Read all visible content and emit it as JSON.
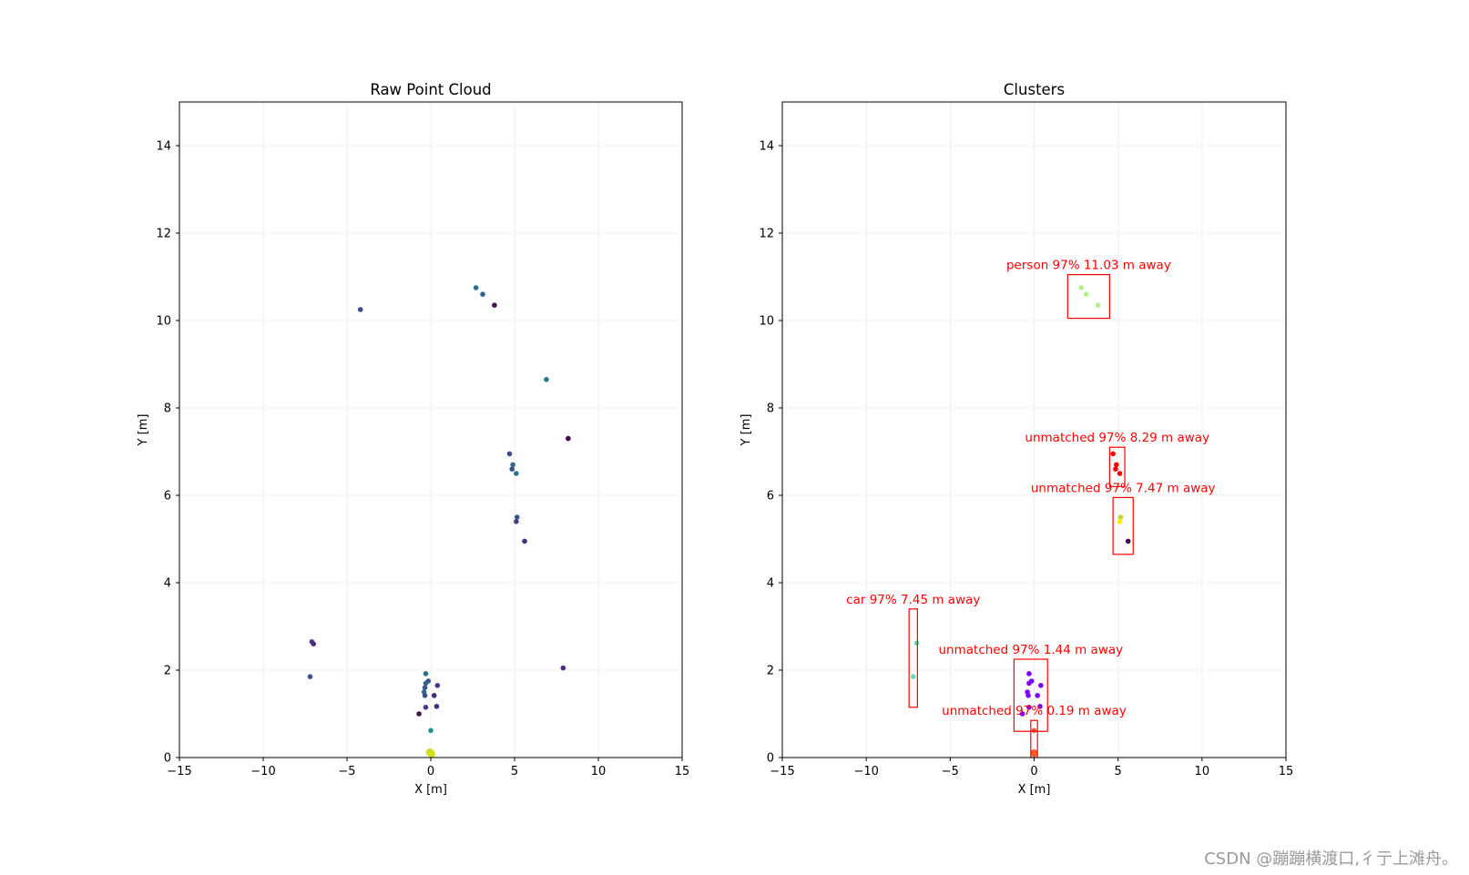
{
  "chart_data": [
    {
      "type": "scatter",
      "title": "Raw Point Cloud",
      "xlabel": "X [m]",
      "ylabel": "Y [m]",
      "xlim": [
        -15,
        15
      ],
      "ylim": [
        0,
        15
      ],
      "xticks": [
        -15,
        -10,
        -5,
        0,
        5,
        10,
        15
      ],
      "yticks": [
        0,
        2,
        4,
        6,
        8,
        10,
        12,
        14
      ],
      "grid": true,
      "series": [
        {
          "name": "points",
          "points": [
            {
              "x": -4.2,
              "y": 10.25,
              "color": "#3b4a8a"
            },
            {
              "x": 2.7,
              "y": 10.75,
              "color": "#2c6e8e"
            },
            {
              "x": 3.1,
              "y": 10.6,
              "color": "#355e8d"
            },
            {
              "x": 3.8,
              "y": 10.35,
              "color": "#46104f"
            },
            {
              "x": 6.9,
              "y": 8.65,
              "color": "#2a788e"
            },
            {
              "x": 8.2,
              "y": 7.3,
              "color": "#440154"
            },
            {
              "x": 4.7,
              "y": 6.95,
              "color": "#3e4a89"
            },
            {
              "x": 4.9,
              "y": 6.7,
              "color": "#31688e"
            },
            {
              "x": 4.85,
              "y": 6.6,
              "color": "#3b528b"
            },
            {
              "x": 5.1,
              "y": 6.5,
              "color": "#2c728e"
            },
            {
              "x": 5.15,
              "y": 5.5,
              "color": "#3b528b"
            },
            {
              "x": 5.1,
              "y": 5.4,
              "color": "#433e85"
            },
            {
              "x": 5.6,
              "y": 4.95,
              "color": "#472d7b"
            },
            {
              "x": -7.1,
              "y": 2.65,
              "color": "#433e85"
            },
            {
              "x": -7.0,
              "y": 2.6,
              "color": "#472d7b"
            },
            {
              "x": -7.2,
              "y": 1.85,
              "color": "#3b528b"
            },
            {
              "x": 7.9,
              "y": 2.05,
              "color": "#472d7b"
            },
            {
              "x": -0.3,
              "y": 1.92,
              "color": "#2c728e"
            },
            {
              "x": -0.15,
              "y": 1.75,
              "color": "#3b528b"
            },
            {
              "x": -0.3,
              "y": 1.7,
              "color": "#31688e"
            },
            {
              "x": -0.35,
              "y": 1.6,
              "color": "#3b528b"
            },
            {
              "x": 0.4,
              "y": 1.65,
              "color": "#433e85"
            },
            {
              "x": -0.4,
              "y": 1.5,
              "color": "#31688e"
            },
            {
              "x": -0.35,
              "y": 1.42,
              "color": "#3b528b"
            },
            {
              "x": 0.2,
              "y": 1.42,
              "color": "#472d7b"
            },
            {
              "x": -0.3,
              "y": 1.15,
              "color": "#433e85"
            },
            {
              "x": 0.35,
              "y": 1.17,
              "color": "#472d7b"
            },
            {
              "x": -0.7,
              "y": 1.0,
              "color": "#46104f"
            },
            {
              "x": 0.0,
              "y": 0.62,
              "color": "#21918c"
            },
            {
              "x": -0.05,
              "y": 0.12,
              "color": "#b5de2b"
            },
            {
              "x": 0.0,
              "y": 0.1,
              "color": "#cde11d"
            },
            {
              "x": 0.05,
              "y": 0.08,
              "color": "#d8e219"
            }
          ]
        }
      ]
    },
    {
      "type": "scatter",
      "title": "Clusters",
      "xlabel": "X [m]",
      "ylabel": "Y [m]",
      "xlim": [
        -15,
        15
      ],
      "ylim": [
        0,
        15
      ],
      "xticks": [
        -15,
        -10,
        -5,
        0,
        5,
        10,
        15
      ],
      "yticks": [
        0,
        2,
        4,
        6,
        8,
        10,
        12,
        14
      ],
      "grid": true,
      "series": [
        {
          "name": "cluster points",
          "points": [
            {
              "x": 2.8,
              "y": 10.75,
              "color": "#b4f08a"
            },
            {
              "x": 3.1,
              "y": 10.6,
              "color": "#b4f08a"
            },
            {
              "x": 3.8,
              "y": 10.35,
              "color": "#b4f08a"
            },
            {
              "x": 4.7,
              "y": 6.95,
              "color": "#ff0000"
            },
            {
              "x": 4.9,
              "y": 6.7,
              "color": "#ff0000"
            },
            {
              "x": 4.85,
              "y": 6.6,
              "color": "#ff0000"
            },
            {
              "x": 5.1,
              "y": 6.5,
              "color": "#ff0000"
            },
            {
              "x": 5.15,
              "y": 5.5,
              "color": "#b5de2b"
            },
            {
              "x": 5.1,
              "y": 5.4,
              "color": "#ffee00"
            },
            {
              "x": 5.6,
              "y": 4.95,
              "color": "#440154"
            },
            {
              "x": -7.0,
              "y": 2.62,
              "color": "#66dbb5"
            },
            {
              "x": -7.2,
              "y": 1.85,
              "color": "#66dbb5"
            },
            {
              "x": -0.3,
              "y": 1.92,
              "color": "#7f00ff"
            },
            {
              "x": -0.15,
              "y": 1.75,
              "color": "#7f00ff"
            },
            {
              "x": -0.3,
              "y": 1.7,
              "color": "#7f00ff"
            },
            {
              "x": 0.4,
              "y": 1.65,
              "color": "#7f00ff"
            },
            {
              "x": -0.4,
              "y": 1.5,
              "color": "#7f00ff"
            },
            {
              "x": -0.35,
              "y": 1.42,
              "color": "#7f00ff"
            },
            {
              "x": 0.2,
              "y": 1.42,
              "color": "#7f00ff"
            },
            {
              "x": -0.3,
              "y": 1.15,
              "color": "#7f00ff"
            },
            {
              "x": 0.35,
              "y": 1.17,
              "color": "#7f00ff"
            },
            {
              "x": -0.7,
              "y": 1.0,
              "color": "#7f00ff"
            },
            {
              "x": 0.0,
              "y": 0.62,
              "color": "#ff5a2a"
            },
            {
              "x": 0.0,
              "y": 0.1,
              "color": "#ff5a2a"
            }
          ]
        }
      ],
      "boxes": [
        {
          "label": "person 97% 11.03 m away",
          "x0": 2.0,
          "x1": 4.5,
          "y0": 10.05,
          "y1": 11.05
        },
        {
          "label": "unmatched 97% 8.29 m away",
          "x0": 4.5,
          "x1": 5.4,
          "y0": 6.2,
          "y1": 7.1
        },
        {
          "label": "unmatched 97% 7.47 m away",
          "x0": 4.7,
          "x1": 5.9,
          "y0": 4.65,
          "y1": 5.95
        },
        {
          "label": "car 97% 7.45 m away",
          "x0": -7.45,
          "x1": -6.95,
          "y0": 1.15,
          "y1": 3.4
        },
        {
          "label": "unmatched 97% 1.44 m away",
          "x0": -1.2,
          "x1": 0.8,
          "y0": 0.6,
          "y1": 2.25
        },
        {
          "label": "unmatched 97% 0.19 m away",
          "x0": -0.2,
          "x1": 0.2,
          "y0": 0.0,
          "y1": 0.85
        }
      ],
      "box_color": "#ff0000"
    }
  ],
  "watermark": "CSDN @蹦蹦横渡口,彳亍上滩舟。"
}
